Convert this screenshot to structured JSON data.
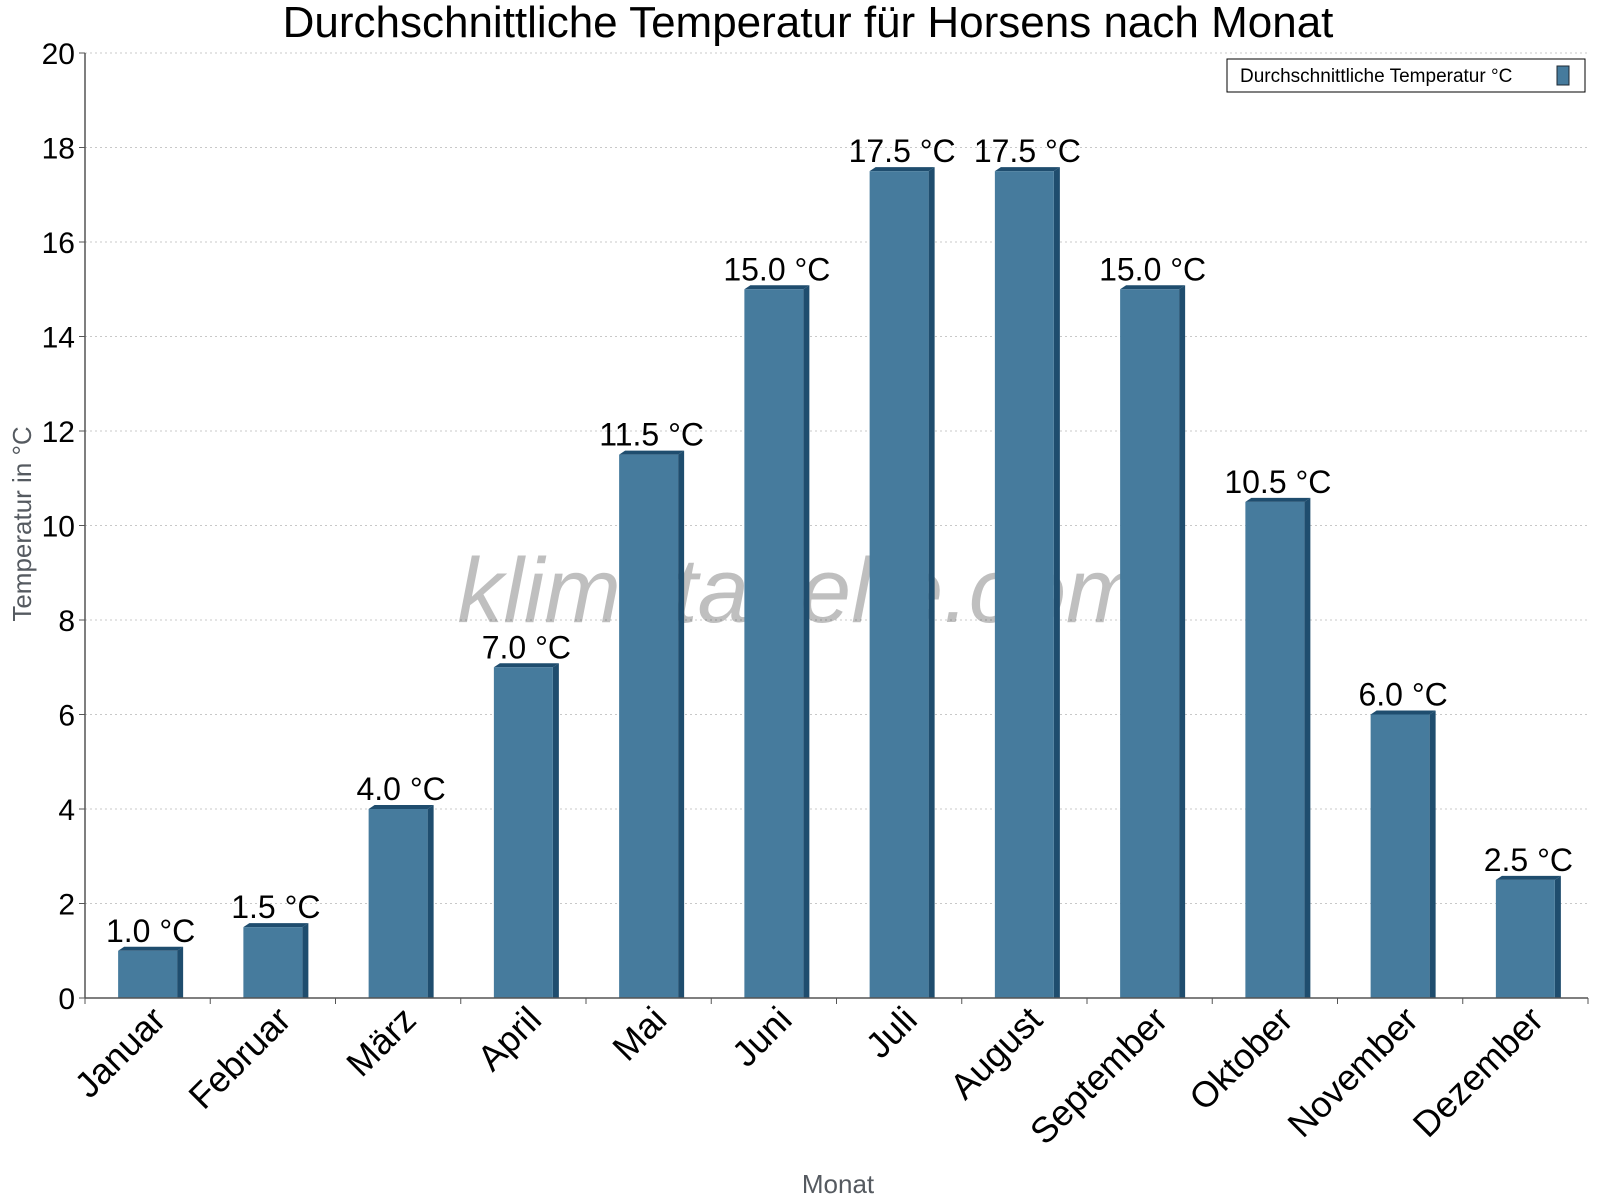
{
  "chart_data": {
    "type": "bar",
    "title": "Durchschnittliche Temperatur für Horsens nach Monat",
    "xlabel": "Monat",
    "ylabel": "Temperatur in °C",
    "categories": [
      "Januar",
      "Februar",
      "März",
      "April",
      "Mai",
      "Juni",
      "Juli",
      "August",
      "September",
      "Oktober",
      "November",
      "Dezember"
    ],
    "series": [
      {
        "name": "Durchschnittliche Temperatur °C",
        "values": [
          1.0,
          1.5,
          4.0,
          7.0,
          11.5,
          15.0,
          17.5,
          17.5,
          15.0,
          10.5,
          6.0,
          2.5
        ],
        "labels": [
          "1.0 °C",
          "1.5 °C",
          "4.0 °C",
          "7.0 °C",
          "11.5 °C",
          "15.0 °C",
          "17.5 °C",
          "17.5 °C",
          "15.0 °C",
          "10.5 °C",
          "6.0 °C",
          "2.5 °C"
        ]
      }
    ],
    "ylim": [
      0,
      20
    ],
    "yticks": [
      0,
      2,
      4,
      6,
      8,
      10,
      12,
      14,
      16,
      18,
      20
    ],
    "grid": true,
    "legend_position": "top-right",
    "colors": {
      "bar": "#467b9d",
      "bar_shade": "#1f4d6e",
      "grid": "#c8c8c8",
      "axis": "#555555"
    },
    "watermark": "klimatabelle.com"
  }
}
